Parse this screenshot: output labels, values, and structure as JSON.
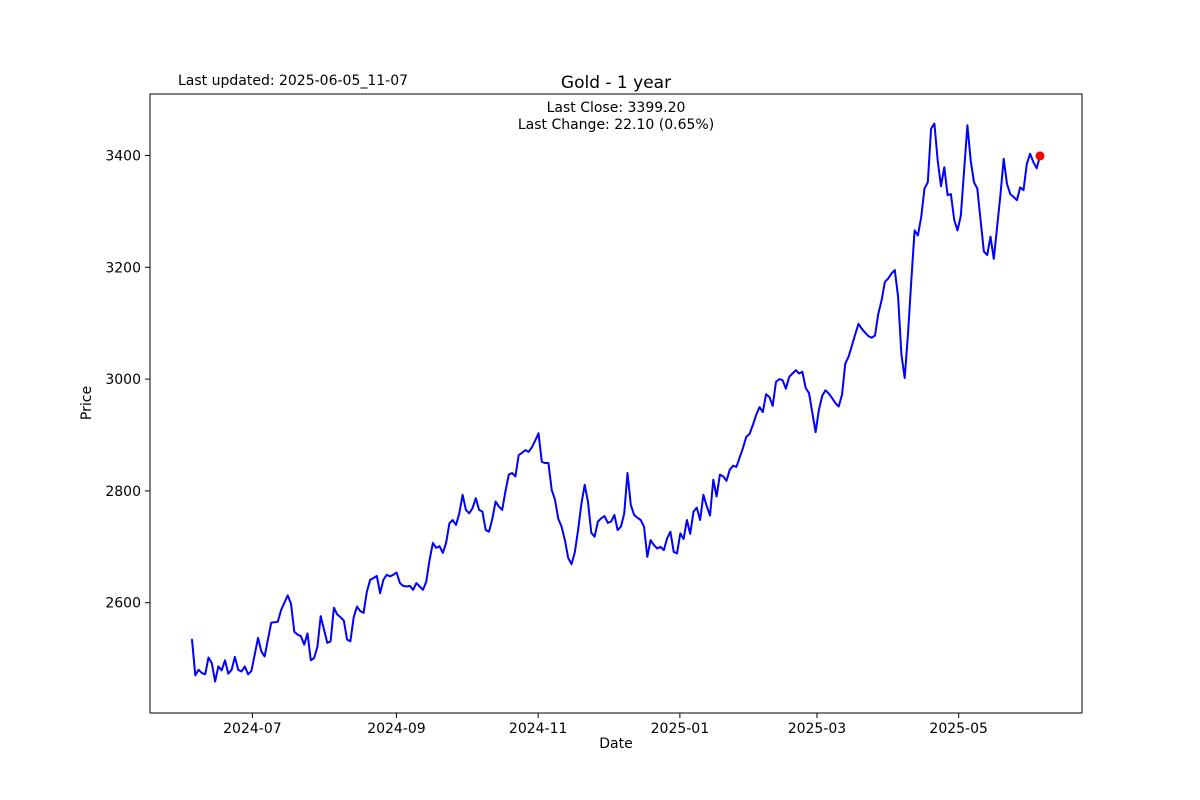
{
  "header": {
    "last_updated": "Last updated: 2025-06-05_11-07"
  },
  "chart_data": {
    "type": "line",
    "title": "Gold - 1 year",
    "xlabel": "Date",
    "ylabel": "Price",
    "annotation_line1": "Last Close: 3399.20",
    "annotation_line2": "Last Change: 22.10 (0.65%)",
    "last_close": 3399.2,
    "last_change": 22.1,
    "last_change_pct": "0.65%",
    "legend": "none",
    "grid": false,
    "line_color": "#0000ff",
    "marker_color": "#ff0000",
    "x_ticks": [
      "2024-07",
      "2024-09",
      "2024-11",
      "2025-01",
      "2025-03",
      "2025-05"
    ],
    "y_ticks": [
      2600,
      2800,
      3000,
      3200,
      3400
    ],
    "x_range_dates": [
      "2024-06-05",
      "2025-06-04"
    ],
    "ylim": [
      2404,
      3508
    ],
    "values": [
      2534,
      2470,
      2480,
      2474,
      2472,
      2502,
      2492,
      2459,
      2486,
      2479,
      2497,
      2473,
      2480,
      2503,
      2480,
      2477,
      2486,
      2472,
      2478,
      2507,
      2537,
      2513,
      2504,
      2534,
      2564,
      2565,
      2566,
      2587,
      2600,
      2613,
      2598,
      2548,
      2543,
      2540,
      2525,
      2545,
      2497,
      2501,
      2521,
      2576,
      2552,
      2528,
      2531,
      2591,
      2579,
      2574,
      2568,
      2534,
      2531,
      2574,
      2593,
      2585,
      2582,
      2620,
      2641,
      2644,
      2648,
      2617,
      2641,
      2650,
      2647,
      2650,
      2654,
      2635,
      2630,
      2629,
      2630,
      2623,
      2635,
      2629,
      2623,
      2638,
      2677,
      2707,
      2698,
      2701,
      2689,
      2707,
      2742,
      2748,
      2739,
      2760,
      2793,
      2766,
      2760,
      2769,
      2787,
      2766,
      2763,
      2730,
      2727,
      2750,
      2781,
      2772,
      2766,
      2800,
      2829,
      2832,
      2826,
      2864,
      2868,
      2873,
      2870,
      2878,
      2890,
      2903,
      2852,
      2850,
      2850,
      2802,
      2784,
      2750,
      2736,
      2712,
      2680,
      2669,
      2690,
      2730,
      2777,
      2811,
      2780,
      2725,
      2718,
      2745,
      2751,
      2755,
      2743,
      2745,
      2757,
      2730,
      2736,
      2759,
      2832,
      2775,
      2757,
      2752,
      2748,
      2736,
      2682,
      2712,
      2703,
      2697,
      2700,
      2694,
      2715,
      2727,
      2691,
      2688,
      2724,
      2714,
      2748,
      2723,
      2763,
      2770,
      2748,
      2793,
      2773,
      2756,
      2820,
      2790,
      2829,
      2826,
      2818,
      2838,
      2845,
      2843,
      2860,
      2877,
      2897,
      2902,
      2918,
      2936,
      2950,
      2941,
      2973,
      2968,
      2952,
      2995,
      3000,
      2998,
      2983,
      3004,
      3010,
      3016,
      3010,
      3013,
      2984,
      2975,
      2940,
      2905,
      2945,
      2970,
      2980,
      2974,
      2966,
      2957,
      2951,
      2972,
      3028,
      3040,
      3060,
      3080,
      3099,
      3090,
      3083,
      3077,
      3074,
      3078,
      3117,
      3141,
      3174,
      3180,
      3189,
      3195,
      3147,
      3044,
      3002,
      3081,
      3176,
      3266,
      3257,
      3290,
      3341,
      3352,
      3448,
      3457,
      3391,
      3345,
      3379,
      3329,
      3331,
      3285,
      3266,
      3292,
      3373,
      3454,
      3391,
      3352,
      3341,
      3284,
      3228,
      3222,
      3255,
      3215,
      3272,
      3329,
      3394,
      3349,
      3331,
      3326,
      3320,
      3343,
      3338,
      3385,
      3403,
      3388,
      3377.1,
      3399.2
    ]
  }
}
